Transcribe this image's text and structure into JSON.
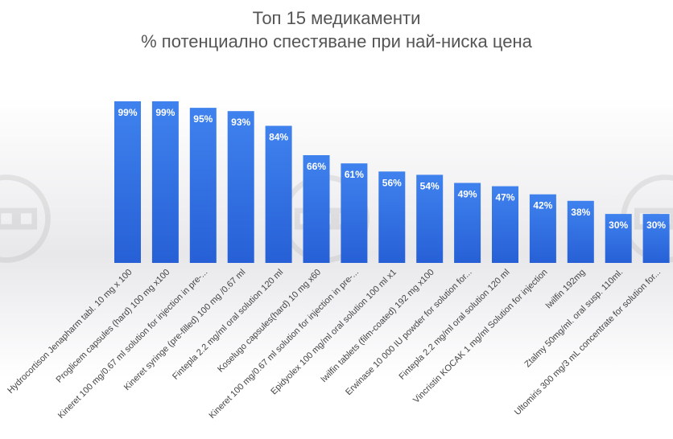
{
  "chart_data": {
    "type": "bar",
    "title": "Топ 15 медикаменти",
    "subtitle": "% потенциално спестяване при най-ниска цена",
    "categories": [
      "Hydrocortison Jenapharm tabl. 10 mg x 100",
      "Proglicem capsules (hard) 100 mg x100",
      "Kineret 100 mg/0.67 ml solution for injection in pre-...",
      "Kineret syringe (pre-filled) 100 mg /0.67 ml",
      "Fintepla 2.2 mg/ml oral solution 120 ml",
      "Koselugo capsules(hard) 10 mg x60",
      "Kineret 100 mg/0.67 ml solution for injection in pre-...",
      "Epidyolex 100 mg/ml oral solution 100 ml x1",
      "Iwilfin tablets (film-coated) 192 mg x100",
      "Erwinase 10 000 IU powder for solution for...",
      "Fintepla 2.2 mg/ml oral solution 120 ml",
      "Vincristin KOCAK 1 mg/ml Solution for injection",
      "Iwilfin 192mg",
      "Ztalmy 50mg/ml. oral susp. 110ml.",
      "Ultomiris 300 mg/3 mL concentrate for solution for..."
    ],
    "values": [
      99,
      99,
      95,
      93,
      84,
      66,
      61,
      56,
      54,
      49,
      47,
      42,
      38,
      30,
      30
    ],
    "value_labels": [
      "99%",
      "99%",
      "95%",
      "93%",
      "84%",
      "66%",
      "61%",
      "56%",
      "54%",
      "49%",
      "47%",
      "42%",
      "38%",
      "30%",
      "30%"
    ],
    "ylim": [
      0,
      100
    ],
    "grid": false,
    "legend": "none",
    "colors": {
      "bar_top": "#3f82ee",
      "bar_bottom": "#2760d6",
      "title": "#555555",
      "label": "#444444"
    }
  }
}
